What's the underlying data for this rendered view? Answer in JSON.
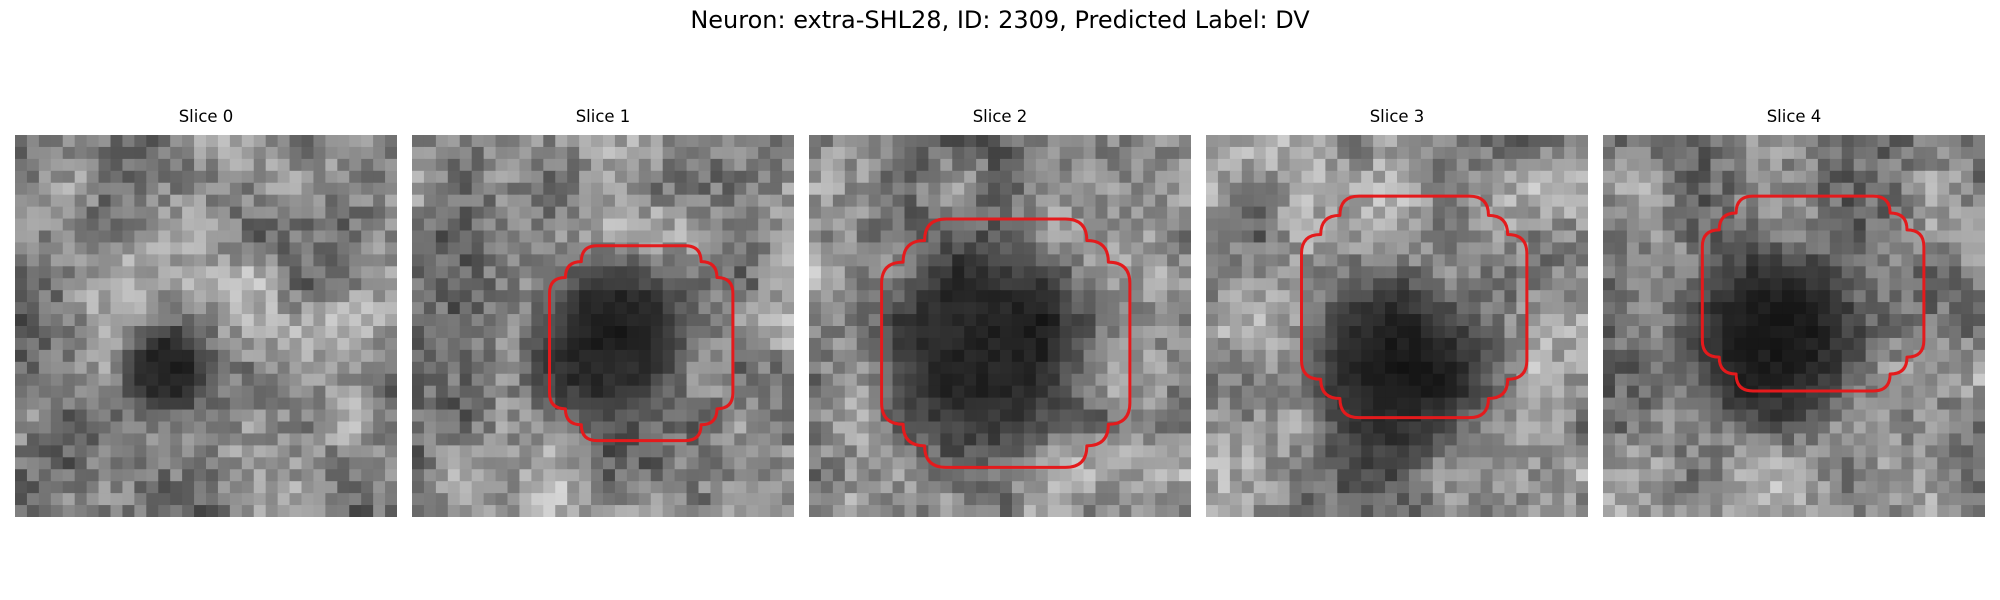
{
  "figure": {
    "title": "Neuron: extra-SHL28, ID: 2309, Predicted Label: DV"
  },
  "panels": [
    {
      "title": "Slice 0",
      "seed": 11,
      "blob": [
        0.4,
        0.62
      ],
      "blob_radius": 0.12,
      "contour": null
    },
    {
      "title": "Slice 1",
      "seed": 23,
      "blob": [
        0.52,
        0.53
      ],
      "blob_radius": 0.22,
      "contour": "small"
    },
    {
      "title": "Slice 2",
      "seed": 37,
      "blob": [
        0.45,
        0.55
      ],
      "blob_radius": 0.28,
      "contour": "large"
    },
    {
      "title": "Slice 3",
      "seed": 41,
      "blob": [
        0.5,
        0.62
      ],
      "blob_radius": 0.26,
      "contour": "medium"
    },
    {
      "title": "Slice 4",
      "seed": 53,
      "blob": [
        0.43,
        0.52
      ],
      "blob_radius": 0.25,
      "contour": "medium-high"
    }
  ],
  "colors": {
    "contour": "#e41a1c",
    "background": "#ffffff"
  },
  "image_style": "grayscale pixelated tiles"
}
